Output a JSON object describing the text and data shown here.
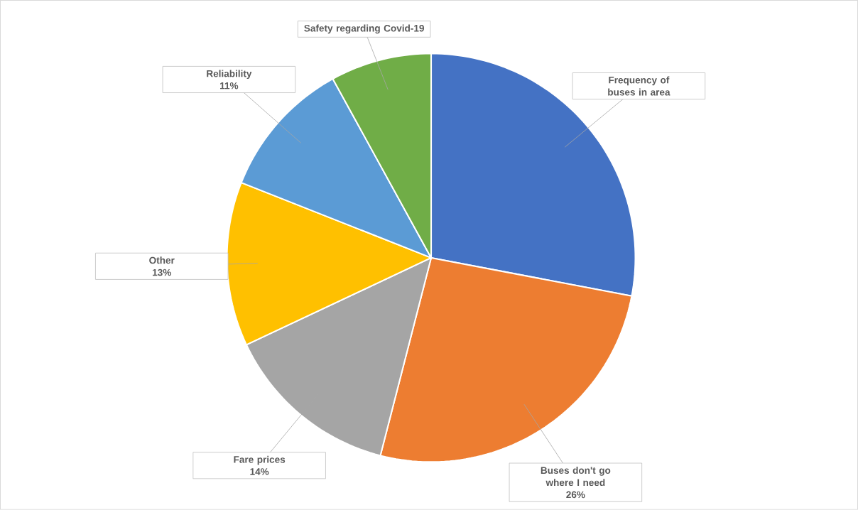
{
  "chart_data": {
    "type": "pie",
    "categories": [
      "Frequency of buses in area",
      "Buses don't go where I need",
      "Fare prices",
      "Other",
      "Reliability",
      "Safety regarding Covid-19"
    ],
    "values": [
      28,
      26,
      14,
      13,
      11,
      8
    ],
    "colors": [
      "#4472c4",
      "#ed7d31",
      "#a5a5a5",
      "#ffc000",
      "#5b9bd5",
      "#70ad47"
    ],
    "value_labels": [
      null,
      "26%",
      "14%",
      "13%",
      "11%",
      null
    ]
  }
}
